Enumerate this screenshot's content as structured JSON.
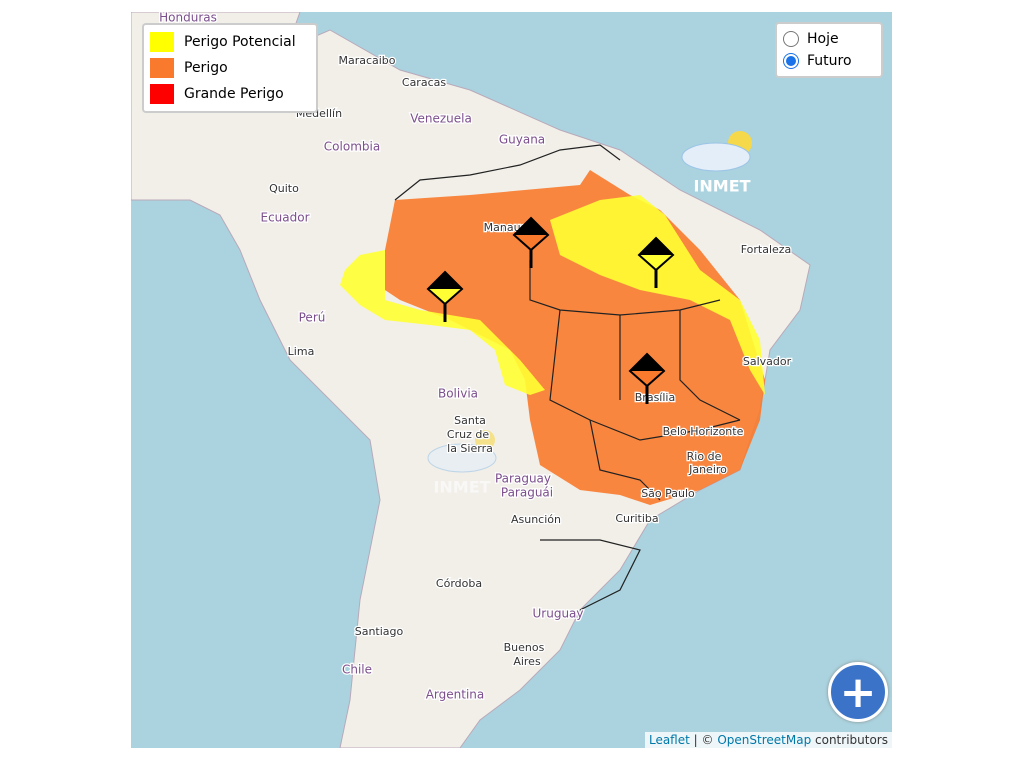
{
  "legend": {
    "items": [
      {
        "label": "Perigo Potencial",
        "color": "#ffff00"
      },
      {
        "label": "Perigo",
        "color": "#f97a2c"
      },
      {
        "label": "Grande Perigo",
        "color": "#ff0000"
      }
    ]
  },
  "period_selector": {
    "options": [
      {
        "label": "Hoje",
        "selected": false
      },
      {
        "label": "Futuro",
        "selected": true
      }
    ]
  },
  "map_labels": [
    "Honduras",
    "Maracaibo",
    "Caracas",
    "Medellín",
    "Venezuela",
    "Guyana",
    "Colombia",
    "Quito",
    "Ecuador",
    "Perú",
    "Lima",
    "Manaus",
    "Fortaleza",
    "Salvador",
    "Bolivia",
    "Santa",
    "Cruz de",
    "la Sierra",
    "Brasília",
    "Belo Horizonte",
    "Rio de",
    "Janeiro",
    "Paraguay",
    "Paraguái",
    "São Paulo",
    "Asunción",
    "Curitiba",
    "Córdoba",
    "Uruguay",
    "Santiago",
    "Buenos",
    "Aires",
    "Chile",
    "Argentina"
  ],
  "logos": [
    "INMET",
    "INMET"
  ],
  "attribution": {
    "leaflet": "Leaflet",
    "separator": "| ©",
    "osm": "OpenStreetMap",
    "suffix": "contributors"
  }
}
